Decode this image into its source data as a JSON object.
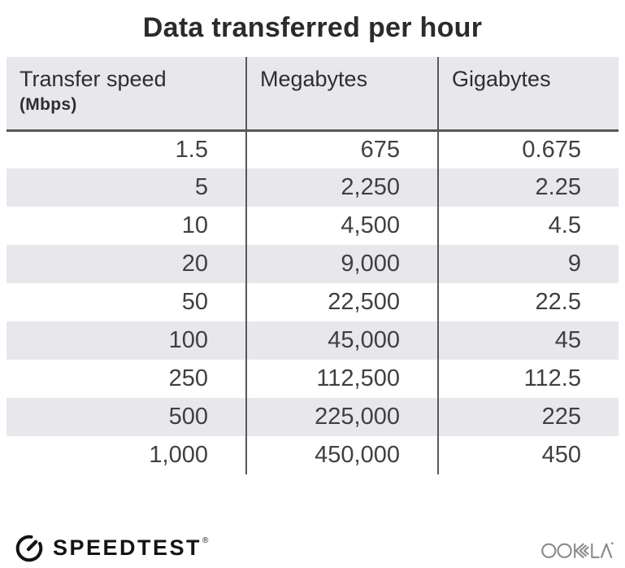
{
  "title": "Data transferred per hour",
  "table": {
    "columns": [
      {
        "label": "Transfer speed",
        "sublabel": "(Mbps)"
      },
      {
        "label": "Megabytes",
        "sublabel": ""
      },
      {
        "label": "Gigabytes",
        "sublabel": ""
      }
    ],
    "rows": [
      [
        "1.5",
        "675",
        "0.675"
      ],
      [
        "5",
        "2,250",
        "2.25"
      ],
      [
        "10",
        "4,500",
        "4.5"
      ],
      [
        "20",
        "9,000",
        "9"
      ],
      [
        "50",
        "22,500",
        "22.5"
      ],
      [
        "100",
        "45,000",
        "45"
      ],
      [
        "250",
        "112,500",
        "112.5"
      ],
      [
        "500",
        "225,000",
        "225"
      ],
      [
        "1,000",
        "450,000",
        "450"
      ]
    ]
  },
  "footer": {
    "speedtest_label": "SPEEDTEST",
    "speedtest_reg": "®",
    "ookla_label": "OOKLA"
  },
  "icons": {
    "speedtest_gauge": "speedometer-gauge-icon",
    "ookla_wordmark": "ookla-wordmark-logo"
  },
  "colors": {
    "background": "#ffffff",
    "title_text": "#2b2b2b",
    "header_bg": "#e8e8ec",
    "stripe_bg": "#e8e8ec",
    "divider": "#58585a",
    "body_text": "#404040",
    "speedtest_black": "#141414",
    "ookla_gray": "#8b8b8b"
  },
  "chart_data": {
    "type": "table",
    "title": "Data transferred per hour",
    "columns": [
      "Transfer speed (Mbps)",
      "Megabytes",
      "Gigabytes"
    ],
    "rows": [
      [
        1.5,
        675,
        0.675
      ],
      [
        5,
        2250,
        2.25
      ],
      [
        10,
        4500,
        4.5
      ],
      [
        20,
        9000,
        9
      ],
      [
        50,
        22500,
        22.5
      ],
      [
        100,
        45000,
        45
      ],
      [
        250,
        112500,
        112.5
      ],
      [
        500,
        225000,
        225
      ],
      [
        1000,
        450000,
        450
      ]
    ]
  }
}
